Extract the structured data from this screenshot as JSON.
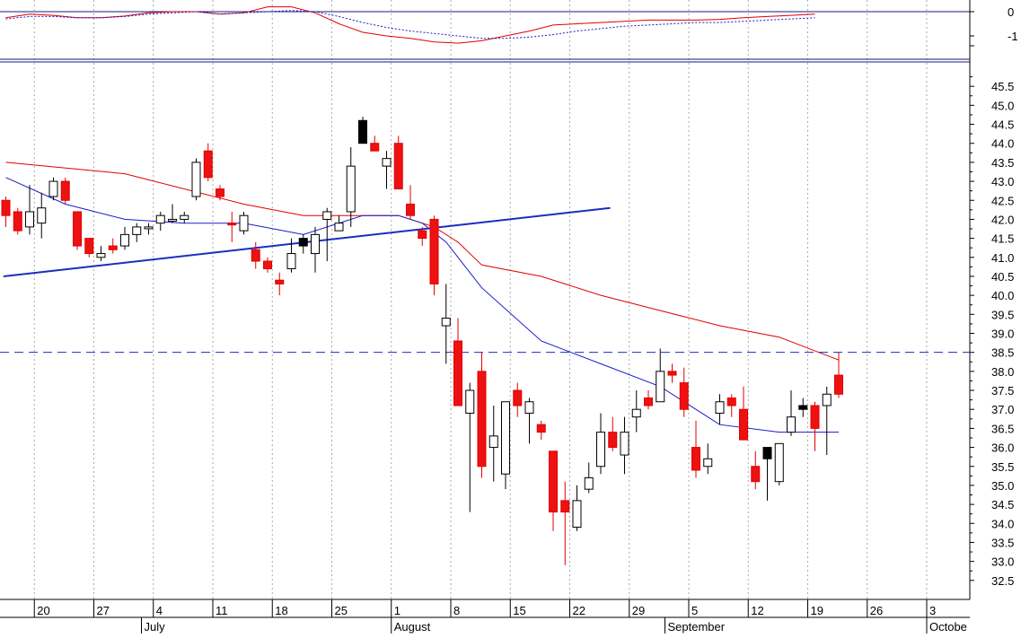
{
  "chart_data": [
    {
      "type": "line",
      "panel": "indicator",
      "ylim": [
        -1.6,
        0.25
      ],
      "y_ticks": [
        {
          "v": 0,
          "label": "0"
        },
        {
          "v": -1,
          "label": "-1"
        }
      ],
      "grid": "vertical dotted",
      "series": [
        {
          "color": "#e00000",
          "style": "solid",
          "x": [
            0,
            2,
            4,
            6,
            8,
            10,
            12,
            14,
            16,
            17,
            18,
            20,
            22,
            24,
            26,
            28,
            30,
            32,
            34,
            36,
            38,
            40,
            42,
            44,
            46,
            48,
            50,
            52,
            54,
            56,
            58,
            60,
            62,
            64,
            66,
            68
          ],
          "y": [
            -0.25,
            -0.1,
            -0.15,
            -0.25,
            -0.25,
            -0.18,
            -0.05,
            0.0,
            0.0,
            -0.05,
            -0.1,
            -0.05,
            0.2,
            0.2,
            -0.05,
            -0.5,
            -0.85,
            -1.0,
            -1.1,
            -1.25,
            -1.3,
            -1.2,
            -1.0,
            -0.8,
            -0.55,
            -0.5,
            -0.45,
            -0.4,
            -0.35,
            -0.35,
            -0.35,
            -0.32,
            -0.25,
            -0.2,
            -0.15,
            -0.1
          ]
        },
        {
          "color": "#1a1acc",
          "style": "dotted",
          "x": [
            0,
            2,
            4,
            6,
            8,
            10,
            12,
            14,
            16,
            18,
            20,
            22,
            24,
            26,
            28,
            30,
            32,
            34,
            36,
            38,
            40,
            42,
            44,
            46,
            48,
            50,
            52,
            54,
            56,
            58,
            60,
            62,
            64,
            66,
            68
          ],
          "y": [
            -0.3,
            -0.2,
            -0.2,
            -0.25,
            -0.25,
            -0.2,
            -0.1,
            -0.05,
            0.0,
            -0.1,
            -0.05,
            0.0,
            0.05,
            0.0,
            -0.2,
            -0.45,
            -0.65,
            -0.8,
            -0.9,
            -1.0,
            -1.1,
            -1.1,
            -1.05,
            -0.95,
            -0.8,
            -0.7,
            -0.6,
            -0.55,
            -0.5,
            -0.45,
            -0.45,
            -0.4,
            -0.35,
            -0.3,
            -0.25
          ]
        }
      ]
    },
    {
      "type": "candlestick",
      "panel": "price",
      "ylim": [
        32.0,
        46.0
      ],
      "y_ticks": [
        32.5,
        33.0,
        33.5,
        34.0,
        34.5,
        35.0,
        35.5,
        36.0,
        36.5,
        37.0,
        37.5,
        38.0,
        38.5,
        39.0,
        39.5,
        40.0,
        40.5,
        41.0,
        41.5,
        42.0,
        42.5,
        43.0,
        43.5,
        44.0,
        44.5,
        45.0,
        45.5
      ],
      "y_tick_labels": [
        "32.5",
        "33.0",
        "33.5",
        "34.0",
        "34.5",
        "35.0",
        "35.5",
        "36.0",
        "36.5",
        "37.0",
        "37.5",
        "38.0",
        "38.5",
        "39.0",
        "39.5",
        "40.0",
        "40.5",
        "41.0",
        "41.5",
        "42.0",
        "42.5",
        "43.0",
        "43.5",
        "44.0",
        "44.5",
        "45.0",
        "45.5"
      ],
      "x_ticks": [
        {
          "i": 3,
          "label": "20"
        },
        {
          "i": 8,
          "label": "27"
        },
        {
          "i": 13,
          "label": "4"
        },
        {
          "i": 18,
          "label": "11"
        },
        {
          "i": 23,
          "label": "18"
        },
        {
          "i": 28,
          "label": "25"
        },
        {
          "i": 33,
          "label": "1"
        },
        {
          "i": 38,
          "label": "8"
        },
        {
          "i": 43,
          "label": "15"
        },
        {
          "i": 48,
          "label": "22"
        },
        {
          "i": 53,
          "label": "29"
        },
        {
          "i": 58,
          "label": "5"
        },
        {
          "i": 63,
          "label": "12"
        },
        {
          "i": 68,
          "label": "19"
        },
        {
          "i": 73,
          "label": "26"
        },
        {
          "i": 78,
          "label": "3"
        }
      ],
      "month_labels": [
        {
          "i": 12,
          "label": "July"
        },
        {
          "i": 33,
          "label": "August"
        },
        {
          "i": 56,
          "label": "September"
        },
        {
          "i": 78,
          "label": "Octobe"
        }
      ],
      "grid": "vertical dotted",
      "candles": [
        {
          "o": 42.5,
          "h": 42.6,
          "l": 41.8,
          "c": 42.1,
          "f": "red"
        },
        {
          "o": 42.2,
          "h": 42.3,
          "l": 41.6,
          "c": 41.7,
          "f": "red"
        },
        {
          "o": 41.8,
          "h": 42.9,
          "l": 41.6,
          "c": 42.2,
          "f": "white"
        },
        {
          "o": 41.9,
          "h": 42.7,
          "l": 41.5,
          "c": 42.3,
          "f": "white"
        },
        {
          "o": 42.6,
          "h": 43.1,
          "l": 42.5,
          "c": 43.0,
          "f": "white"
        },
        {
          "o": 43.0,
          "h": 43.1,
          "l": 42.4,
          "c": 42.5,
          "f": "red"
        },
        {
          "o": 42.2,
          "h": 42.2,
          "l": 41.2,
          "c": 41.3,
          "f": "red"
        },
        {
          "o": 41.5,
          "h": 41.5,
          "l": 41.0,
          "c": 41.1,
          "f": "red"
        },
        {
          "o": 41.0,
          "h": 41.3,
          "l": 40.9,
          "c": 41.1,
          "f": "white"
        },
        {
          "o": 41.3,
          "h": 41.5,
          "l": 41.1,
          "c": 41.2,
          "f": "red"
        },
        {
          "o": 41.3,
          "h": 41.8,
          "l": 41.2,
          "c": 41.6,
          "f": "white"
        },
        {
          "o": 41.6,
          "h": 41.9,
          "l": 41.4,
          "c": 41.8,
          "f": "white"
        },
        {
          "o": 41.8,
          "h": 41.9,
          "l": 41.6,
          "c": 41.8,
          "f": "white"
        },
        {
          "o": 41.9,
          "h": 42.2,
          "l": 41.7,
          "c": 42.1,
          "f": "white"
        },
        {
          "o": 42.0,
          "h": 42.4,
          "l": 41.9,
          "c": 42.0,
          "f": "white"
        },
        {
          "o": 42.1,
          "h": 42.2,
          "l": 41.9,
          "c": 42.0,
          "f": "white"
        },
        {
          "o": 42.6,
          "h": 43.6,
          "l": 42.5,
          "c": 43.5,
          "f": "white"
        },
        {
          "o": 43.8,
          "h": 44.0,
          "l": 43.0,
          "c": 43.1,
          "f": "red"
        },
        {
          "o": 42.8,
          "h": 42.9,
          "l": 42.5,
          "c": 42.6,
          "f": "red"
        },
        {
          "o": 41.9,
          "h": 42.2,
          "l": 41.4,
          "c": 41.9,
          "f": "red"
        },
        {
          "o": 41.7,
          "h": 42.2,
          "l": 41.6,
          "c": 42.1,
          "f": "white"
        },
        {
          "o": 41.2,
          "h": 41.4,
          "l": 40.7,
          "c": 40.9,
          "f": "red"
        },
        {
          "o": 40.9,
          "h": 41.0,
          "l": 40.6,
          "c": 40.7,
          "f": "red"
        },
        {
          "o": 40.4,
          "h": 40.6,
          "l": 40.0,
          "c": 40.3,
          "f": "red"
        },
        {
          "o": 40.7,
          "h": 41.5,
          "l": 40.6,
          "c": 41.1,
          "f": "white"
        },
        {
          "o": 41.3,
          "h": 41.6,
          "l": 41.1,
          "c": 41.5,
          "f": "black"
        },
        {
          "o": 41.1,
          "h": 41.8,
          "l": 40.6,
          "c": 41.6,
          "f": "white"
        },
        {
          "o": 42.0,
          "h": 42.3,
          "l": 40.9,
          "c": 42.2,
          "f": "white"
        },
        {
          "o": 41.7,
          "h": 42.1,
          "l": 41.7,
          "c": 41.9,
          "f": "white"
        },
        {
          "o": 42.2,
          "h": 43.9,
          "l": 41.8,
          "c": 43.4,
          "f": "white"
        },
        {
          "o": 44.0,
          "h": 44.7,
          "l": 44.0,
          "c": 44.6,
          "f": "black"
        },
        {
          "o": 44.0,
          "h": 44.2,
          "l": 43.8,
          "c": 43.8,
          "f": "red"
        },
        {
          "o": 43.4,
          "h": 43.8,
          "l": 42.8,
          "c": 43.6,
          "f": "white"
        },
        {
          "o": 44.0,
          "h": 44.2,
          "l": 42.8,
          "c": 42.8,
          "f": "red"
        },
        {
          "o": 42.4,
          "h": 42.9,
          "l": 42.0,
          "c": 42.1,
          "f": "red"
        },
        {
          "o": 41.7,
          "h": 41.8,
          "l": 41.3,
          "c": 41.5,
          "f": "red"
        },
        {
          "o": 42.0,
          "h": 42.1,
          "l": 40.0,
          "c": 40.3,
          "f": "red"
        },
        {
          "o": 39.2,
          "h": 40.3,
          "l": 38.2,
          "c": 39.4,
          "f": "white"
        },
        {
          "o": 38.8,
          "h": 39.4,
          "l": 37.1,
          "c": 37.1,
          "f": "red"
        },
        {
          "o": 36.9,
          "h": 37.7,
          "l": 34.3,
          "c": 37.5,
          "f": "white"
        },
        {
          "o": 38.0,
          "h": 38.5,
          "l": 35.2,
          "c": 35.5,
          "f": "red"
        },
        {
          "o": 36.0,
          "h": 37.1,
          "l": 35.1,
          "c": 36.3,
          "f": "white"
        },
        {
          "o": 35.3,
          "h": 37.2,
          "l": 34.9,
          "c": 37.2,
          "f": "white"
        },
        {
          "o": 37.5,
          "h": 37.7,
          "l": 36.8,
          "c": 37.1,
          "f": "red"
        },
        {
          "o": 36.9,
          "h": 37.3,
          "l": 36.1,
          "c": 37.2,
          "f": "white"
        },
        {
          "o": 36.6,
          "h": 36.7,
          "l": 36.2,
          "c": 36.4,
          "f": "red"
        },
        {
          "o": 35.9,
          "h": 35.9,
          "l": 33.8,
          "c": 34.3,
          "f": "red"
        },
        {
          "o": 34.6,
          "h": 35.1,
          "l": 32.9,
          "c": 34.3,
          "f": "red"
        },
        {
          "o": 33.9,
          "h": 35.0,
          "l": 33.8,
          "c": 34.6,
          "f": "white"
        },
        {
          "o": 34.9,
          "h": 35.6,
          "l": 34.8,
          "c": 35.2,
          "f": "white"
        },
        {
          "o": 35.5,
          "h": 36.9,
          "l": 35.3,
          "c": 36.4,
          "f": "white"
        },
        {
          "o": 36.4,
          "h": 36.8,
          "l": 35.9,
          "c": 36.0,
          "f": "red"
        },
        {
          "o": 35.8,
          "h": 36.8,
          "l": 35.3,
          "c": 36.4,
          "f": "white"
        },
        {
          "o": 36.8,
          "h": 37.5,
          "l": 36.4,
          "c": 37.0,
          "f": "white"
        },
        {
          "o": 37.3,
          "h": 37.5,
          "l": 37.0,
          "c": 37.1,
          "f": "red"
        },
        {
          "o": 37.2,
          "h": 38.6,
          "l": 37.2,
          "c": 38.0,
          "f": "white"
        },
        {
          "o": 38.0,
          "h": 38.2,
          "l": 37.7,
          "c": 37.9,
          "f": "red"
        },
        {
          "o": 37.7,
          "h": 38.1,
          "l": 36.8,
          "c": 37.0,
          "f": "red"
        },
        {
          "o": 36.0,
          "h": 36.7,
          "l": 35.2,
          "c": 35.4,
          "f": "red"
        },
        {
          "o": 35.5,
          "h": 36.1,
          "l": 35.3,
          "c": 35.7,
          "f": "white"
        },
        {
          "o": 36.9,
          "h": 37.4,
          "l": 36.6,
          "c": 37.2,
          "f": "white"
        },
        {
          "o": 37.3,
          "h": 37.4,
          "l": 36.8,
          "c": 37.1,
          "f": "red"
        },
        {
          "o": 37.0,
          "h": 37.6,
          "l": 36.3,
          "c": 36.2,
          "f": "red"
        },
        {
          "o": 35.5,
          "h": 35.9,
          "l": 34.9,
          "c": 35.1,
          "f": "red"
        },
        {
          "o": 35.7,
          "h": 36.0,
          "l": 34.6,
          "c": 36.0,
          "f": "black"
        },
        {
          "o": 35.1,
          "h": 36.1,
          "l": 35.0,
          "c": 36.1,
          "f": "white"
        },
        {
          "o": 36.4,
          "h": 37.5,
          "l": 36.3,
          "c": 36.8,
          "f": "white"
        },
        {
          "o": 37.1,
          "h": 37.3,
          "l": 36.8,
          "c": 37.0,
          "f": "black"
        },
        {
          "o": 37.1,
          "h": 37.2,
          "l": 35.9,
          "c": 36.5,
          "f": "red"
        },
        {
          "o": 37.1,
          "h": 37.6,
          "l": 35.8,
          "c": 37.4,
          "f": "white"
        },
        {
          "o": 37.9,
          "h": 38.5,
          "l": 37.3,
          "c": 37.4,
          "f": "red"
        }
      ],
      "ma_long": {
        "color": "#e00000",
        "i": [
          0,
          10,
          20,
          25,
          30,
          33,
          36,
          38,
          40,
          45,
          50,
          55,
          60,
          65,
          70
        ],
        "v": [
          43.5,
          43.2,
          42.4,
          42.1,
          42.1,
          42.1,
          41.8,
          41.4,
          40.8,
          40.5,
          40.0,
          39.6,
          39.2,
          38.9,
          38.3
        ]
      },
      "ma_short": {
        "color": "#1a1acc",
        "i": [
          0,
          5,
          10,
          15,
          20,
          25,
          28,
          30,
          33,
          35,
          37,
          40,
          45,
          50,
          55,
          60,
          65,
          70
        ],
        "v": [
          43.1,
          42.4,
          42.0,
          41.9,
          41.9,
          41.6,
          41.9,
          42.1,
          42.1,
          41.9,
          41.4,
          40.2,
          38.8,
          38.2,
          37.6,
          36.6,
          36.4,
          36.4
        ]
      },
      "trendline": {
        "color": "#1a2ec0",
        "i0": -0.2,
        "v0": 40.5,
        "i1": 50.8,
        "v1": 42.3
      },
      "resistance": {
        "color": "#1a2ec0",
        "v": 38.5,
        "style": "dashed"
      }
    }
  ]
}
